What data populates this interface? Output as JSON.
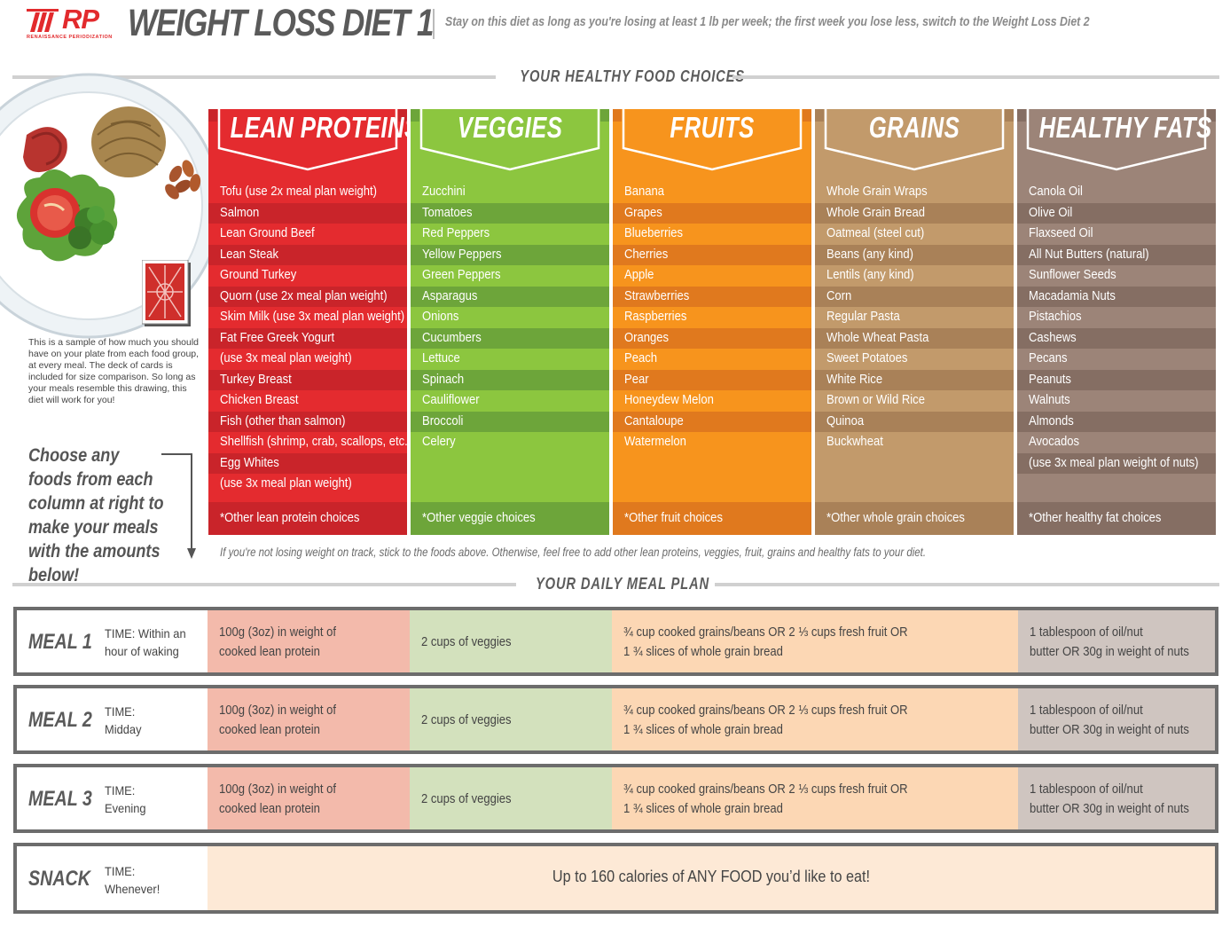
{
  "header": {
    "logo_text": "RP",
    "logo_subtext": "RENAISSANCE PERIODIZATION",
    "title": "WEIGHT LOSS DIET 1",
    "subtitle": "Stay on this diet as long as you're losing at least 1 lb per week; the first week you lose less, switch to the Weight Loss Diet 2"
  },
  "sections": {
    "food_choices": "YOUR HEALTHY FOOD CHOICES",
    "meal_plan": "YOUR DAILY MEAL PLAN"
  },
  "plate_note": "This is a sample of how much you should have on your plate from each food group, at every meal. The deck of cards is included for size comparison. So long as your meals resemble this drawing, this diet will work for you!",
  "choose_text": "Choose any foods from each column at right to make your meals with the amounts below!",
  "columns": [
    {
      "title": "LEAN PROTEINS",
      "color": "#e42b2f",
      "stripe": "#c9242a",
      "items": [
        "Tofu (use 2x meal plan weight)",
        "Salmon",
        "Lean Ground Beef",
        "Lean Steak",
        "Ground Turkey",
        "Quorn (use 2x meal plan weight)",
        "Skim Milk (use 3x meal plan weight)",
        "Fat Free Greek Yogurt",
        "(use 3x meal plan weight)",
        "Turkey Breast",
        "Chicken Breast",
        "Fish (other than salmon)",
        "Shellfish (shrimp, crab, scallops, etc.)",
        "Egg Whites",
        "(use 3x meal plan weight)"
      ],
      "other": "*Other lean protein choices"
    },
    {
      "title": "VEGGIES",
      "color": "#8cc63f",
      "stripe": "#6da53a",
      "items": [
        "Zucchini",
        "Tomatoes",
        "Red Peppers",
        "Yellow Peppers",
        "Green Peppers",
        "Asparagus",
        "Onions",
        "Cucumbers",
        "Lettuce",
        "Spinach",
        "Cauliflower",
        "Broccoli",
        "Celery"
      ],
      "other": "*Other veggie choices"
    },
    {
      "title": "FRUITS",
      "color": "#f7941d",
      "stripe": "#e0791e",
      "items": [
        "Banana",
        "Grapes",
        "Blueberries",
        "Cherries",
        "Apple",
        "Strawberries",
        "Raspberries",
        "Oranges",
        "Peach",
        "Pear",
        "Honeydew Melon",
        "Cantaloupe",
        "Watermelon"
      ],
      "other": "*Other fruit choices"
    },
    {
      "title": "GRAINS",
      "color": "#c29a6b",
      "stripe": "#a98158",
      "items": [
        "Whole Grain Wraps",
        "Whole Grain Bread",
        "Oatmeal (steel cut)",
        "Beans (any kind)",
        "Lentils (any kind)",
        "Corn",
        "Regular Pasta",
        "Whole Wheat Pasta",
        "Sweet Potatoes",
        "White Rice",
        "Brown or Wild Rice",
        "Quinoa",
        "Buckwheat"
      ],
      "other": "*Other whole grain choices"
    },
    {
      "title": "HEALTHY FATS",
      "color": "#9c8478",
      "stripe": "#856e63",
      "items": [
        "Canola Oil",
        "Olive Oil",
        "Flaxseed Oil",
        "All Nut Butters (natural)",
        "Sunflower Seeds",
        "Macadamia Nuts",
        "Pistachios",
        "Cashews",
        "Pecans",
        "Peanuts",
        "Walnuts",
        "Almonds",
        "Avocados",
        "(use 3x meal plan weight of nuts)"
      ],
      "other": "*Other  healthy fat choices"
    }
  ],
  "footnote": "If you're not losing weight on track, stick to the foods above. Otherwise, feel free to add other lean proteins, veggies, fruit, grains and healthy fats to your diet.",
  "meals": [
    {
      "name": "MEAL 1",
      "time_line1": "TIME: Within an",
      "time_line2": "hour of waking",
      "protein_line1": "100g (3oz) in weight of",
      "protein_line2": "cooked lean protein",
      "veggies": "2 cups of veggies",
      "fruit_line1": "¾ cup cooked grains/beans OR 2 ⅓ cups fresh fruit OR",
      "fruit_line2": "1 ¾ slices of whole grain bread",
      "fat_line1": "1 tablespoon of oil/nut",
      "fat_line2": "butter OR 30g in weight of nuts"
    },
    {
      "name": "MEAL 2",
      "time_line1": "TIME:",
      "time_line2": "Midday",
      "protein_line1": "100g (3oz) in weight of",
      "protein_line2": "cooked lean protein",
      "veggies": "2 cups of veggies",
      "fruit_line1": "¾ cup cooked grains/beans OR 2 ⅓ cups fresh fruit OR",
      "fruit_line2": "1 ¾ slices of whole grain bread",
      "fat_line1": "1 tablespoon of oil/nut",
      "fat_line2": "butter OR 30g in weight of nuts"
    },
    {
      "name": "MEAL 3",
      "time_line1": "TIME:",
      "time_line2": "Evening",
      "protein_line1": "100g (3oz) in weight of",
      "protein_line2": "cooked lean protein",
      "veggies": "2 cups of veggies",
      "fruit_line1": "¾ cup cooked grains/beans OR 2 ⅓ cups fresh fruit OR",
      "fruit_line2": "1 ¾ slices of whole grain bread",
      "fat_line1": "1 tablespoon of oil/nut",
      "fat_line2": "butter OR 30g in weight of nuts"
    }
  ],
  "snack": {
    "name": "SNACK",
    "time_line1": "TIME:",
    "time_line2": "Whenever!",
    "text": "Up to 160 calories of ANY FOOD you’d like to eat!"
  }
}
